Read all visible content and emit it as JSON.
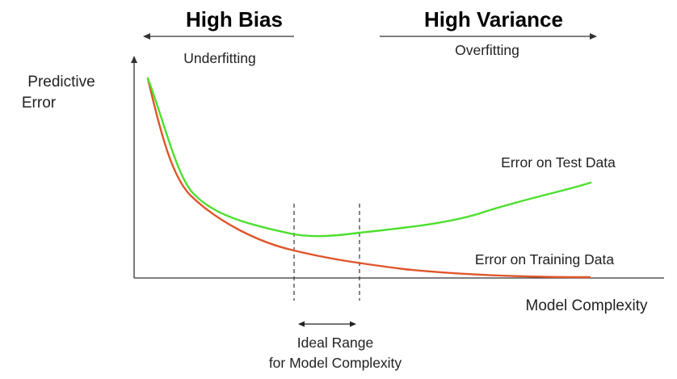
{
  "header": {
    "left_title": "High Bias",
    "left_subtitle": "Underfitting",
    "right_title": "High Variance",
    "right_subtitle": "Overfitting"
  },
  "axes": {
    "y_label_line1": "Predictive",
    "y_label_line2": "Error",
    "x_label": "Model Complexity"
  },
  "curves": {
    "test": {
      "label": "Error on Test Data",
      "color": "#4ddf2e"
    },
    "training": {
      "label": "Error on Training Data",
      "color": "#e0552a"
    }
  },
  "ideal_range": {
    "line1": "Ideal Range",
    "line2": "for Model Complexity"
  },
  "colors": {
    "axis": "#333333",
    "text": "#222222",
    "title": "#000000"
  }
}
